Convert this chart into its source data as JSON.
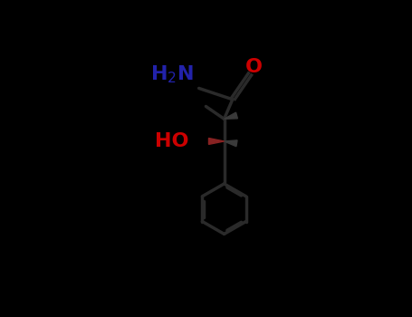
{
  "bg_color": "#000000",
  "bond_color": "#1a1a1a",
  "bond_color2": "#2a2a2a",
  "nh2_color": "#2222aa",
  "o_color": "#cc0000",
  "ho_color": "#cc0000",
  "stereo_dark": "#3a3a3a",
  "wedge_color": "#444444",
  "line_lw": 2.5,
  "font_size": 16
}
